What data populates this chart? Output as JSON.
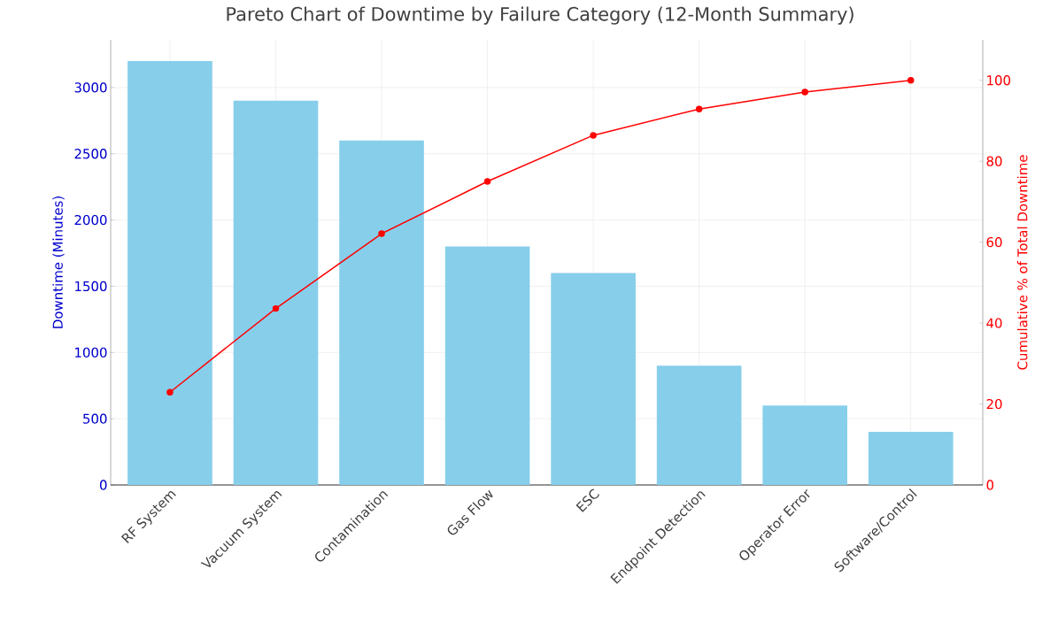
{
  "chart_data": {
    "type": "bar",
    "title": "Pareto Chart of Downtime by Failure Category (12-Month Summary)",
    "ylabel": "Downtime (Minutes)",
    "y2label": "Cumulative % of Total Downtime",
    "categories": [
      "RF System",
      "Vacuum System",
      "Contamination",
      "Gas Flow",
      "ESC",
      "Endpoint Detection",
      "Operator Error",
      "Software/Control"
    ],
    "series": [
      {
        "color": "#87ceeb",
        "values": [
          3200,
          2900,
          2600,
          1800,
          1600,
          900,
          600,
          400
        ]
      },
      {
        "type": "line",
        "axis": "y2",
        "color": "#ff0000",
        "marker": "circle",
        "line_style": "solid",
        "values": [
          22.9,
          43.6,
          62.1,
          75.0,
          86.4,
          92.9,
          97.1,
          100.0
        ]
      }
    ],
    "ylim": [
      0,
      3360
    ],
    "yticks": [
      0,
      500,
      1000,
      1500,
      2000,
      2500,
      3000
    ],
    "y2lim": [
      0,
      110
    ],
    "y2ticks": [
      0,
      20,
      40,
      60,
      80,
      100
    ],
    "grid": true
  }
}
